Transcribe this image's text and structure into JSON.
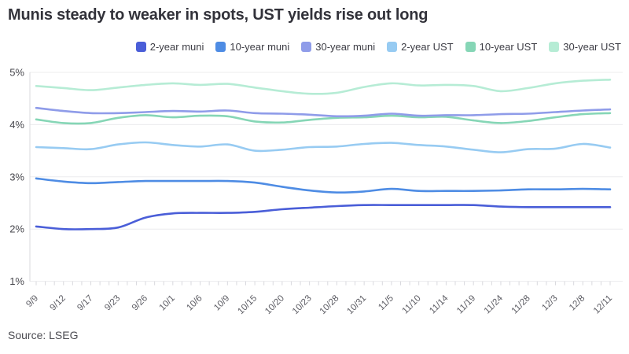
{
  "header": {
    "title": "Munis steady to weaker in spots, UST yields rise out long"
  },
  "footer": {
    "source": "Source: LSEG"
  },
  "colors": {
    "background": "#ffffff",
    "title_text": "#32323a",
    "axis_text": "#47474d",
    "x_label_text": "#5c5c63",
    "gridline": "#ececee",
    "axis_line": "#d9d9de"
  },
  "chart_data": {
    "type": "line",
    "title": "Munis steady to weaker in spots, UST yields rise out long",
    "xlabel": "",
    "ylabel": "",
    "ylim": [
      1,
      5
    ],
    "y_tick_labels": [
      "5%",
      "4%",
      "3%",
      "2%",
      "1%"
    ],
    "grid": "horizontal",
    "legend_position": "top-right",
    "x_labels": [
      "9/9",
      "9/12",
      "9/17",
      "9/23",
      "9/26",
      "10/1",
      "10/6",
      "10/9",
      "10/15",
      "10/20",
      "10/23",
      "10/28",
      "10/31",
      "11/5",
      "11/10",
      "11/14",
      "11/19",
      "11/24",
      "11/28",
      "12/3",
      "12/8",
      "12/11"
    ],
    "series": [
      {
        "name": "2-year muni",
        "color": "#4a5ed8",
        "values": [
          2.05,
          2.0,
          2.0,
          2.03,
          2.22,
          2.3,
          2.31,
          2.31,
          2.33,
          2.38,
          2.41,
          2.44,
          2.46,
          2.46,
          2.46,
          2.46,
          2.46,
          2.43,
          2.42,
          2.42,
          2.42,
          2.42
        ]
      },
      {
        "name": "10-year muni",
        "color": "#4e8ce4",
        "values": [
          2.97,
          2.91,
          2.88,
          2.9,
          2.92,
          2.92,
          2.92,
          2.92,
          2.89,
          2.81,
          2.74,
          2.7,
          2.72,
          2.77,
          2.73,
          2.73,
          2.73,
          2.74,
          2.76,
          2.76,
          2.77,
          2.76
        ]
      },
      {
        "name": "30-year muni",
        "color": "#8f9ce9",
        "values": [
          4.32,
          4.26,
          4.22,
          4.22,
          4.24,
          4.26,
          4.25,
          4.27,
          4.22,
          4.21,
          4.19,
          4.16,
          4.17,
          4.21,
          4.17,
          4.18,
          4.18,
          4.2,
          4.21,
          4.24,
          4.27,
          4.29
        ]
      },
      {
        "name": "2-year UST",
        "color": "#97cbf2",
        "values": [
          3.57,
          3.55,
          3.53,
          3.62,
          3.66,
          3.61,
          3.58,
          3.62,
          3.5,
          3.52,
          3.57,
          3.58,
          3.63,
          3.65,
          3.61,
          3.58,
          3.52,
          3.47,
          3.53,
          3.54,
          3.63,
          3.56
        ]
      },
      {
        "name": "10-year UST",
        "color": "#86d6b6",
        "values": [
          4.1,
          4.03,
          4.03,
          4.13,
          4.18,
          4.14,
          4.17,
          4.16,
          4.06,
          4.04,
          4.09,
          4.13,
          4.14,
          4.17,
          4.14,
          4.15,
          4.08,
          4.03,
          4.07,
          4.14,
          4.2,
          4.22
        ]
      },
      {
        "name": "30-year UST",
        "color": "#b6ecd5",
        "values": [
          4.74,
          4.7,
          4.66,
          4.71,
          4.76,
          4.79,
          4.76,
          4.78,
          4.71,
          4.64,
          4.59,
          4.61,
          4.72,
          4.79,
          4.75,
          4.76,
          4.74,
          4.64,
          4.7,
          4.79,
          4.84,
          4.86
        ]
      }
    ]
  }
}
